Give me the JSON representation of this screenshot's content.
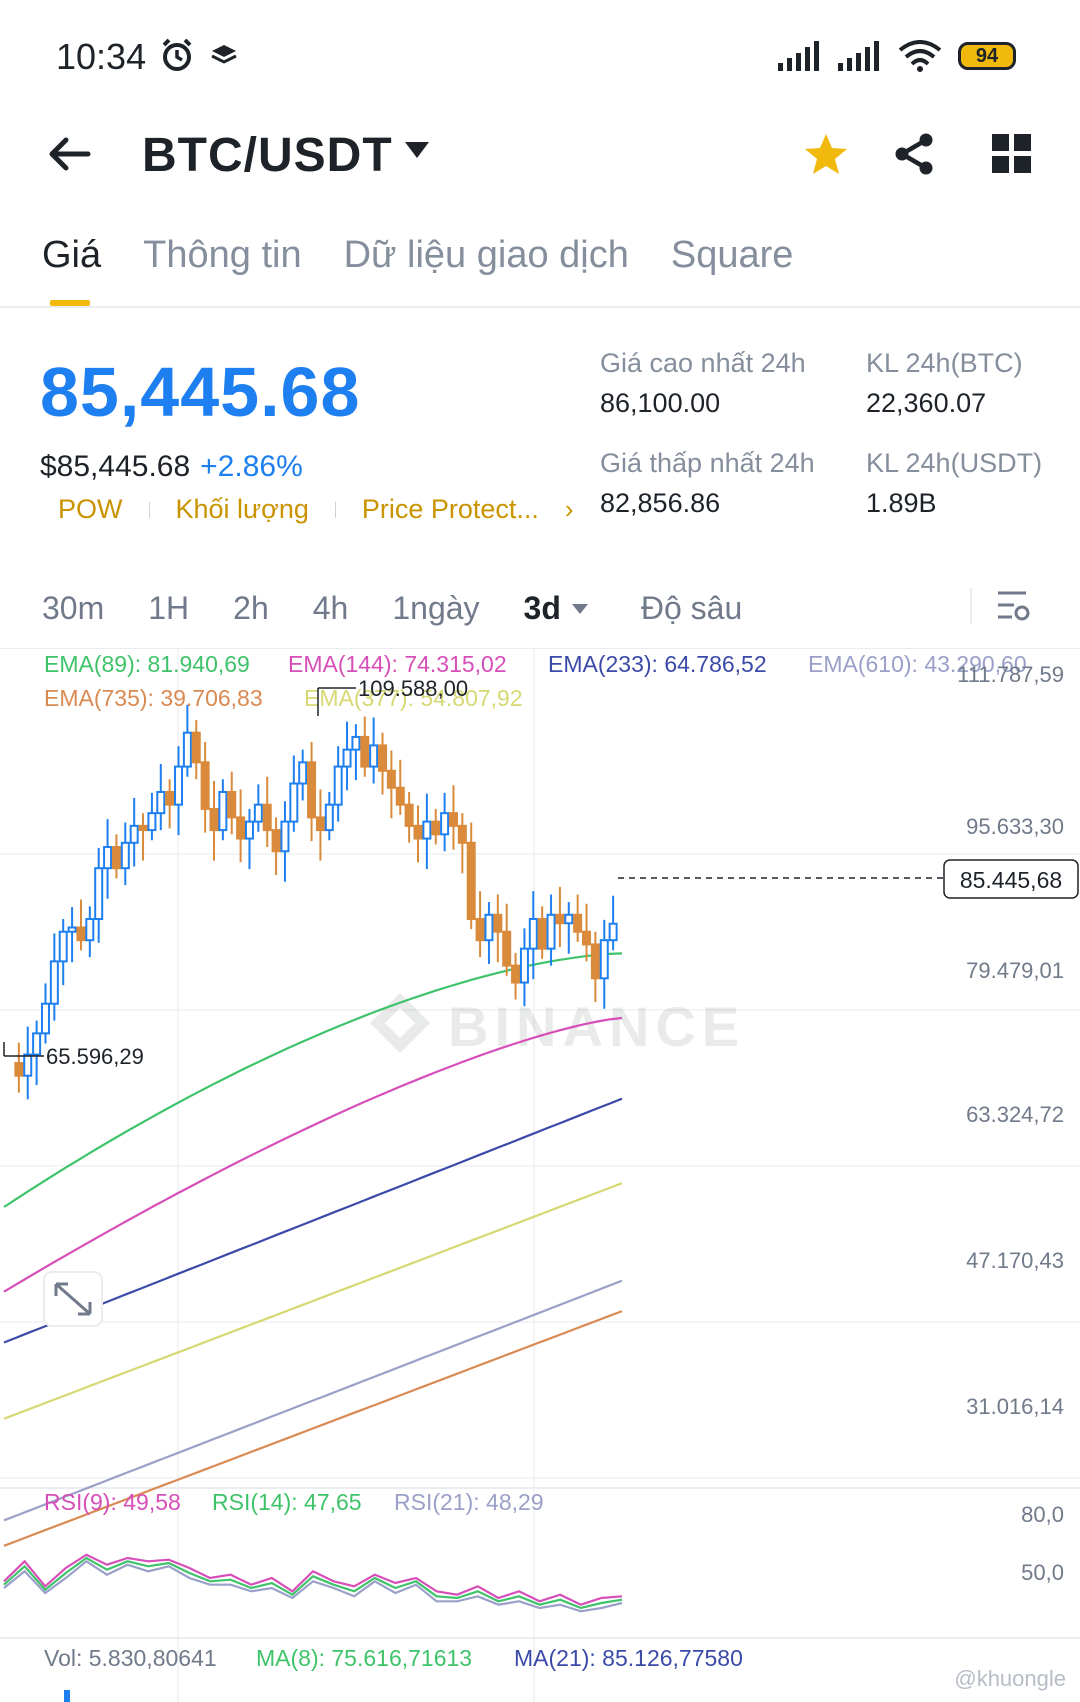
{
  "status": {
    "time": "10:34",
    "battery": "94"
  },
  "header": {
    "title": "BTC/USDT"
  },
  "tabs": [
    {
      "label": "Giá",
      "active": true
    },
    {
      "label": "Thông tin",
      "active": false
    },
    {
      "label": "Dữ liệu giao dịch",
      "active": false
    },
    {
      "label": "Square",
      "active": false
    }
  ],
  "price": {
    "last": "85,445.68",
    "usd": "$85,445.68",
    "change": "+2.86%"
  },
  "tags": [
    "POW",
    "Khối lượng",
    "Price Protect..."
  ],
  "stats": {
    "high_label": "Giá cao nhất 24h",
    "high_value": "86,100.00",
    "low_label": "Giá thấp nhất 24h",
    "low_value": "82,856.86",
    "vol_btc_label": "KL 24h(BTC)",
    "vol_btc_value": "22,360.07",
    "vol_usdt_label": "KL 24h(USDT)",
    "vol_usdt_value": "1.89B"
  },
  "intervals": [
    "30m",
    "1H",
    "2h",
    "4h",
    "1ngày",
    "3d",
    "Độ sâu"
  ],
  "active_interval": "3d",
  "ema_legend": [
    {
      "label": "EMA(89): 81.940,69",
      "color": "#3fc36a"
    },
    {
      "label": "EMA(144): 74.315,02",
      "color": "#d64fb8"
    },
    {
      "label": "EMA(233): 64.786,52",
      "color": "#3b4aa8"
    },
    {
      "label": "EMA(610): 43.290,60",
      "color": "#9aa0c8"
    },
    {
      "label": "EMA(735): 39.706,83",
      "color": "#d98a52"
    },
    {
      "label": "EMA(377): 54.807,92",
      "color": "#d7d873"
    }
  ],
  "price_axis": [
    "111.787,59",
    "95.633,30",
    "79.479,01",
    "63.324,72",
    "47.170,43",
    "31.016,14"
  ],
  "last_price_tag": "85.445,68",
  "high_marker": "109.588,00",
  "low_marker": "65.596,29",
  "watermark": "BINANCE",
  "rsi_legend": [
    {
      "label": "RSI(9): 49,58",
      "color": "#d64fb8"
    },
    {
      "label": "RSI(14): 47,65",
      "color": "#3fc36a"
    },
    {
      "label": "RSI(21): 48,29",
      "color": "#9aa0c8"
    }
  ],
  "rsi_axis": [
    "80,0",
    "50,0"
  ],
  "vol_legend": [
    {
      "label": "Vol: 5.830,80641",
      "color": "#707a8a"
    },
    {
      "label": "MA(8): 75.616,71613",
      "color": "#3fc36a"
    },
    {
      "label": "MA(21): 85.126,77580",
      "color": "#3b4aa8"
    }
  ],
  "credit": "@khuongle",
  "colors": {
    "up": "#1e7ff0",
    "down": "#d98a3a",
    "accent": "#f0b90b"
  },
  "chart_data": {
    "type": "line",
    "title": "",
    "series": [
      {
        "name": "EMA(89)",
        "x": [
          0,
          100
        ],
        "values": [
          52000,
          81940.69
        ]
      },
      {
        "name": "EMA(144)",
        "x": [
          0,
          100
        ],
        "values": [
          42000,
          74315.02
        ]
      },
      {
        "name": "EMA(233)",
        "x": [
          0,
          100
        ],
        "values": [
          36000,
          64786.52
        ]
      },
      {
        "name": "EMA(377)",
        "x": [
          0,
          100
        ],
        "values": [
          27000,
          54807.92
        ]
      },
      {
        "name": "EMA(610)",
        "x": [
          0,
          100
        ],
        "values": [
          15000,
          43290.6
        ]
      },
      {
        "name": "EMA(735)",
        "x": [
          0,
          100
        ],
        "values": [
          12000,
          39706.83
        ]
      }
    ],
    "ylim": [
      20000,
      118000
    ],
    "last": 85445.68,
    "high": 109588.0,
    "low": 65596.29
  }
}
